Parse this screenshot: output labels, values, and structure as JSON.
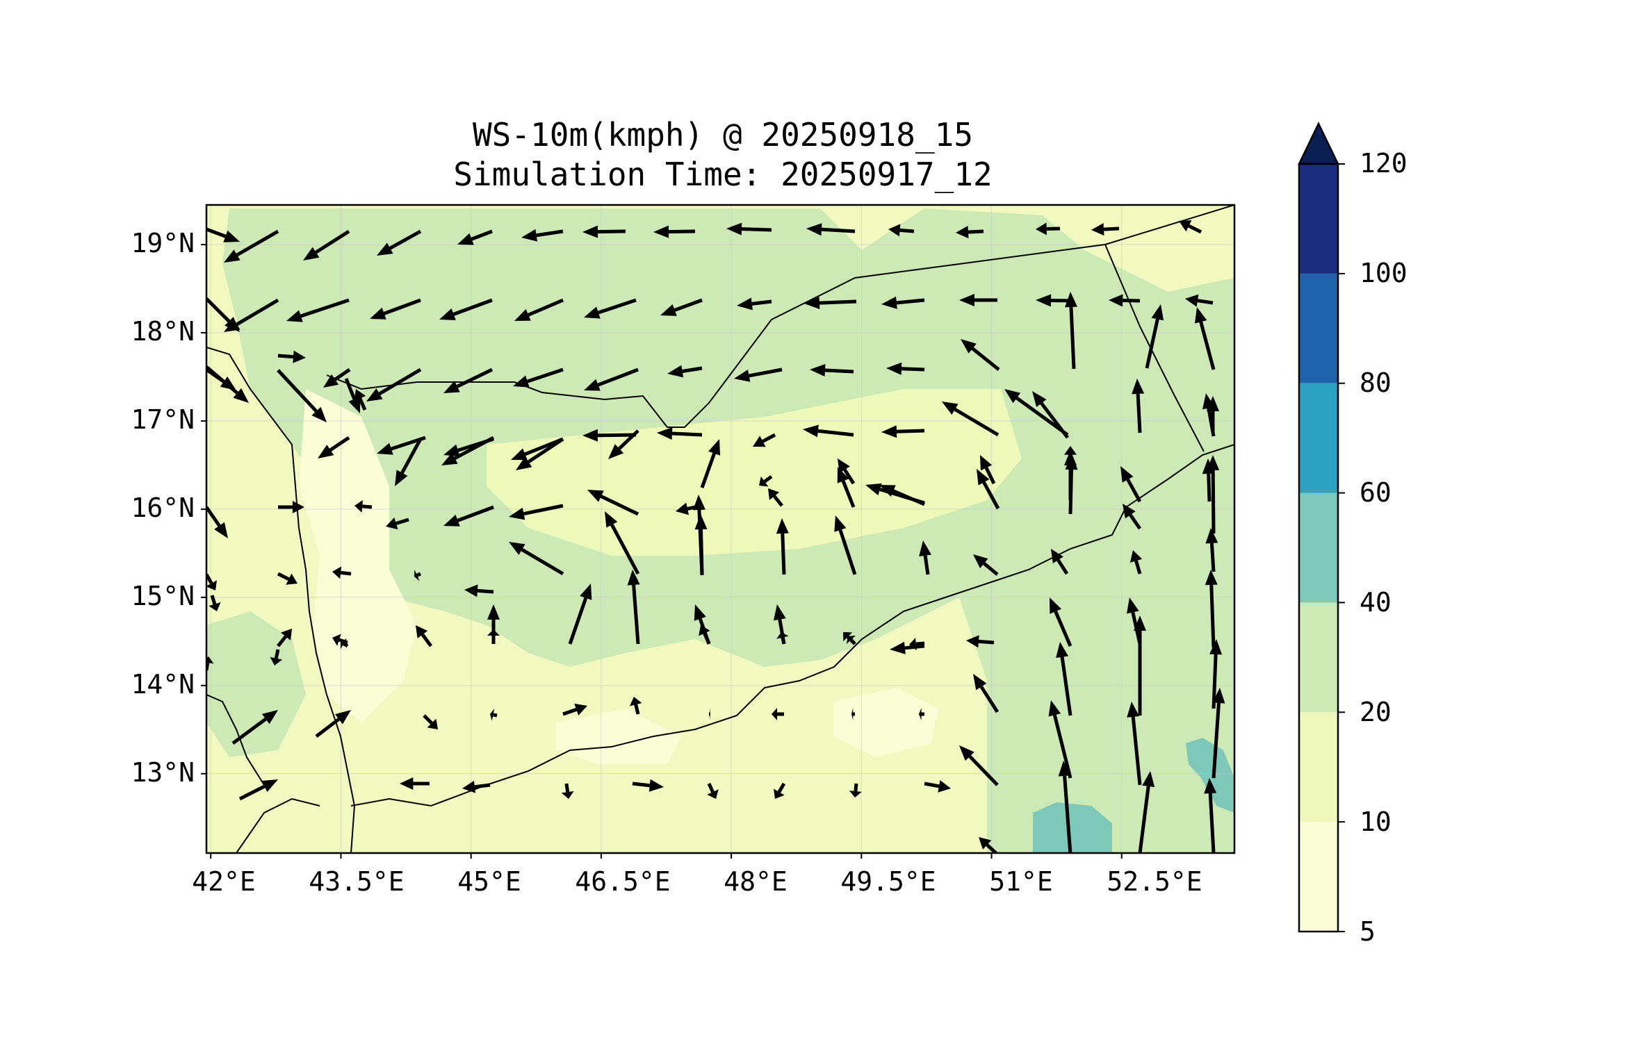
{
  "title": {
    "line1": "WS-10m(kmph) @ 20250918_15",
    "line2": "Simulation Time: 20250917_12"
  },
  "map": {
    "lat_range": [
      12.1,
      19.45
    ],
    "lon_range": [
      41.95,
      53.8
    ],
    "lat_ticks": [
      "19°N",
      "18°N",
      "17°N",
      "16°N",
      "15°N",
      "14°N",
      "13°N"
    ],
    "lon_ticks": [
      "42°E",
      "43.5°E",
      "45°E",
      "46.5°E",
      "48°E",
      "49.5°E",
      "51°E",
      "52.5°E"
    ],
    "gridlines": true,
    "land_fill": "#f2f9c0",
    "coastline_color": "#000000",
    "vector_color": "#000000"
  },
  "colorbar": {
    "levels": [
      "5",
      "10",
      "20",
      "40",
      "60",
      "80",
      "100",
      "120"
    ],
    "colors": [
      "#fbfdd6",
      "#eef8b8",
      "#cde9b6",
      "#7ec8ba",
      "#2ca1c2",
      "#2163aa",
      "#1d2d7e"
    ],
    "extend_color": "#0b1e52",
    "extend": "max"
  }
}
